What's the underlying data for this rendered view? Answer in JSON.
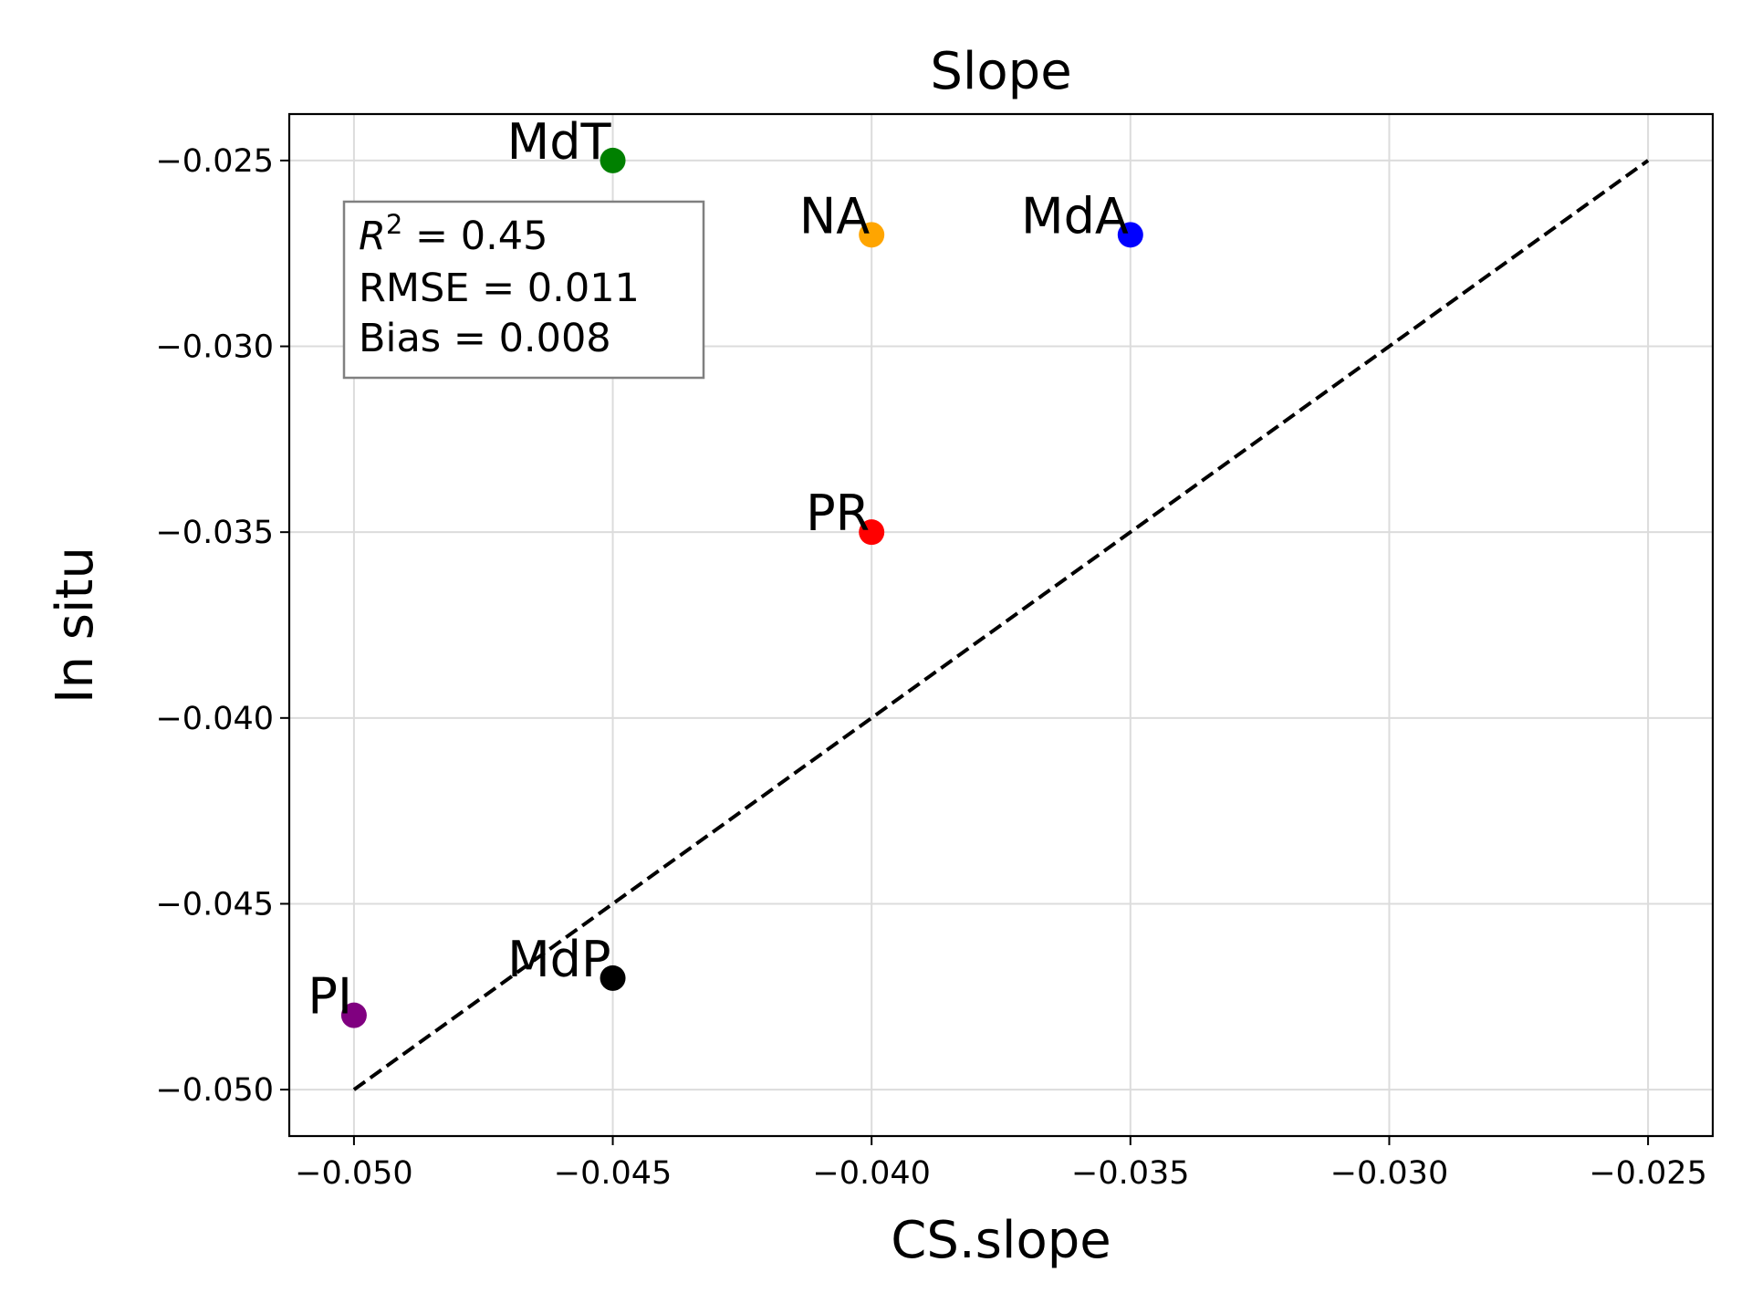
{
  "chart_data": {
    "type": "scatter",
    "title": "Slope",
    "xlabel": "CS.slope",
    "ylabel": "In situ",
    "xlim": [
      -0.05125,
      -0.02375
    ],
    "ylim": [
      -0.05125,
      -0.02375
    ],
    "grid": true,
    "xticks": [
      -0.05,
      -0.045,
      -0.04,
      -0.035,
      -0.03,
      -0.025
    ],
    "yticks": [
      -0.05,
      -0.045,
      -0.04,
      -0.035,
      -0.03,
      -0.025
    ],
    "xtick_labels": [
      "−0.050",
      "−0.045",
      "−0.040",
      "−0.035",
      "−0.030",
      "−0.025"
    ],
    "ytick_labels": [
      "−0.050",
      "−0.045",
      "−0.040",
      "−0.035",
      "−0.030",
      "−0.025"
    ],
    "points": [
      {
        "label": "MdT",
        "x": -0.045,
        "y": -0.025,
        "color": "#008000"
      },
      {
        "label": "NA",
        "x": -0.04,
        "y": -0.027,
        "color": "#ffa500"
      },
      {
        "label": "MdA",
        "x": -0.035,
        "y": -0.027,
        "color": "#0000ff"
      },
      {
        "label": "PR",
        "x": -0.04,
        "y": -0.035,
        "color": "#ff0000"
      },
      {
        "label": "MdP",
        "x": -0.045,
        "y": -0.047,
        "color": "#000000"
      },
      {
        "label": "PI",
        "x": -0.05,
        "y": -0.048,
        "color": "#800080"
      }
    ],
    "reference_line": {
      "style": "dashed",
      "color": "#000000",
      "x": [
        -0.05,
        -0.025
      ],
      "y": [
        -0.05,
        -0.025
      ]
    },
    "stats_box": {
      "placement": "upper-left",
      "r2_symbol": "R",
      "r2_sup": "2",
      "r2_rest": " = 0.45",
      "rmse": "RMSE = 0.011",
      "bias": "Bias = 0.008"
    }
  }
}
